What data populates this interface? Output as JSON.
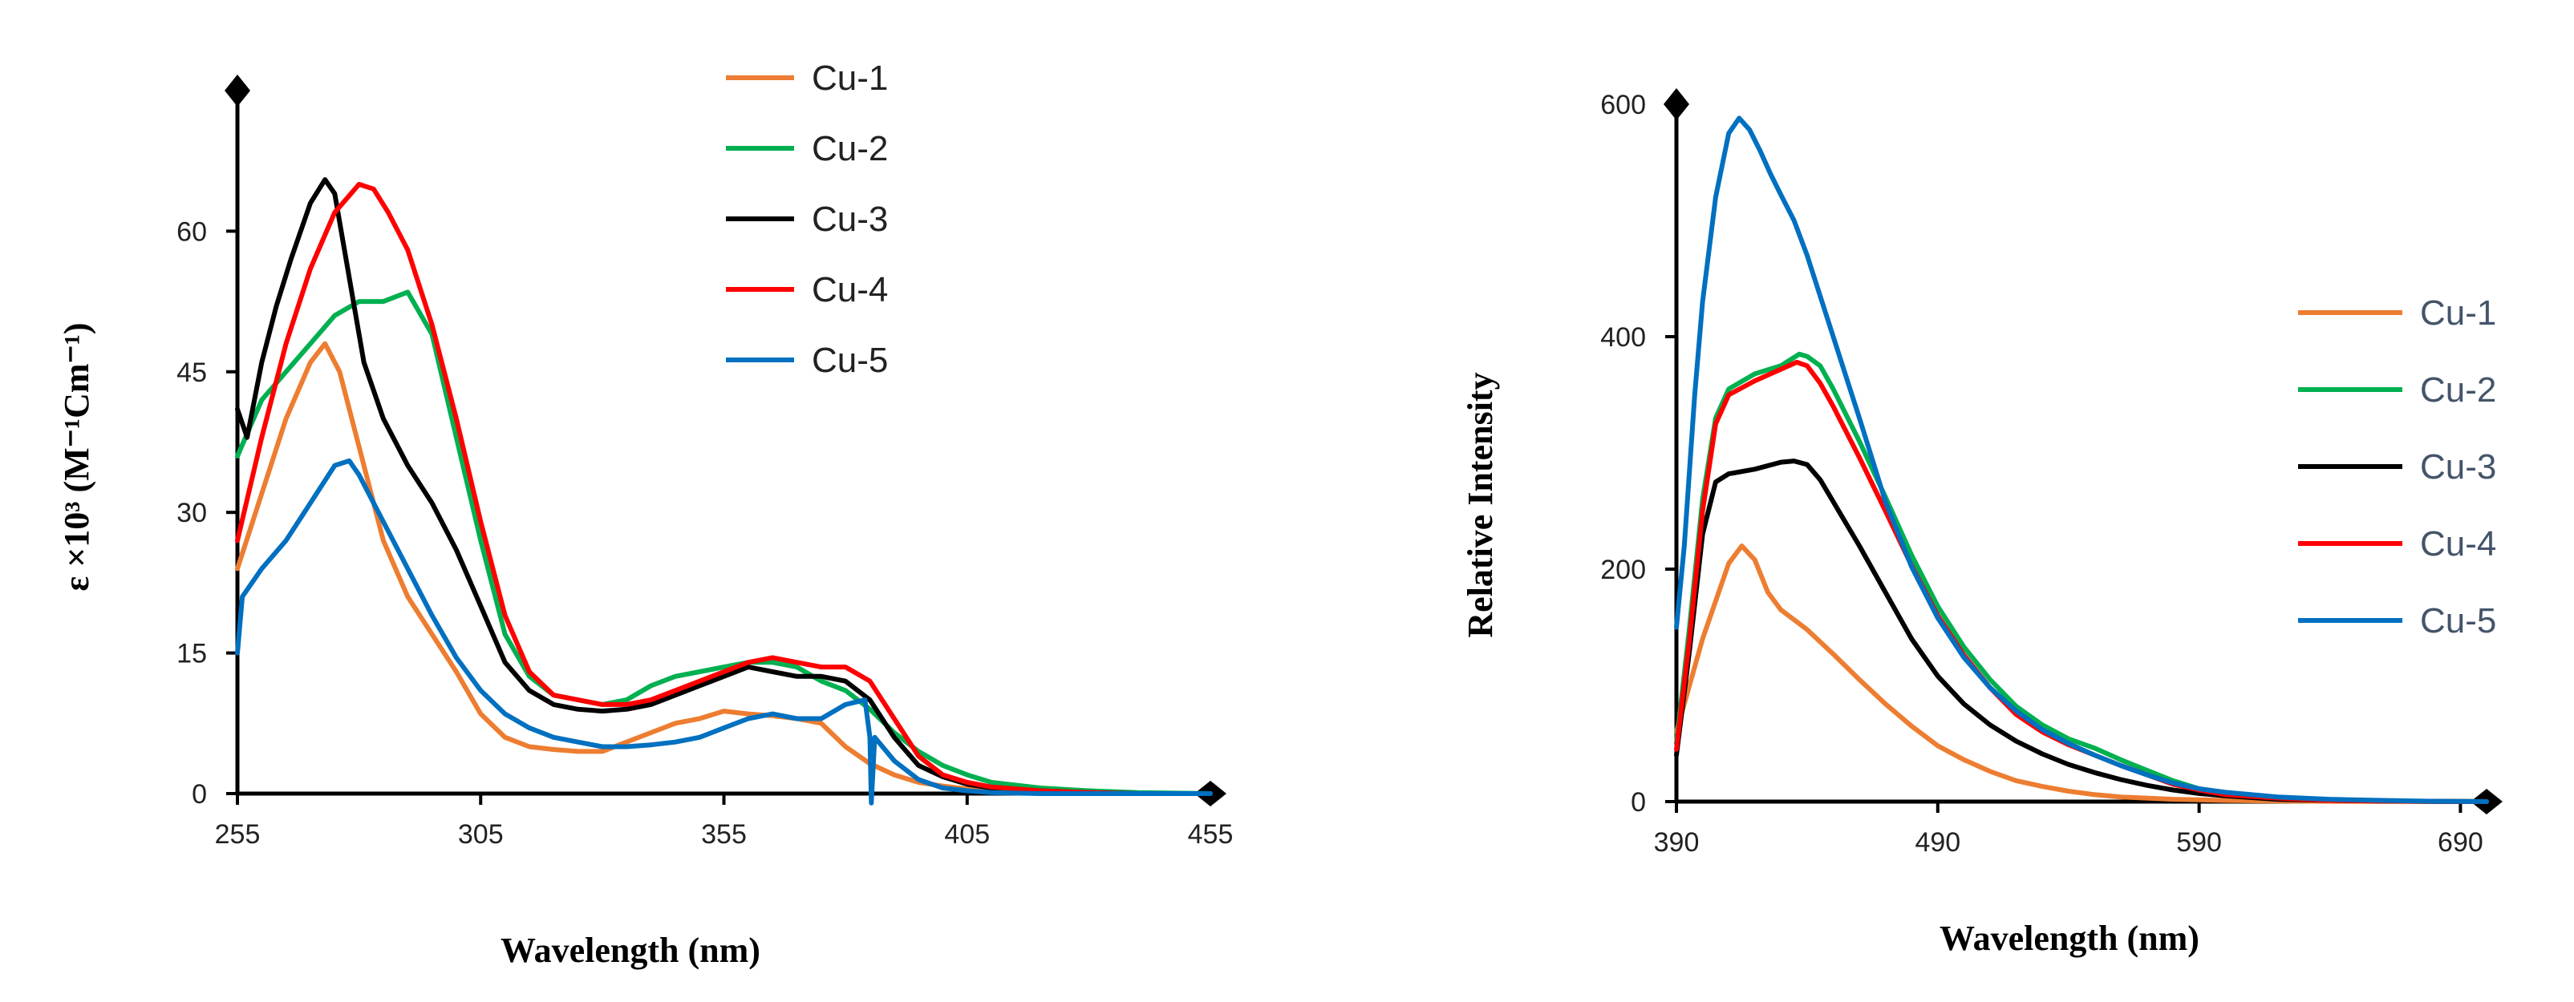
{
  "chart_data": [
    {
      "type": "line",
      "title": "",
      "xlabel": "Wavelength (nm)",
      "ylabel": "ε ×10³ (M⁻¹Cm⁻¹)",
      "xlim": [
        255,
        455
      ],
      "ylim": [
        0,
        75
      ],
      "xticks": [
        "255",
        "305",
        "355",
        "405",
        "455"
      ],
      "yticks": [
        "0",
        "15",
        "30",
        "45",
        "60"
      ],
      "legend_position": "top-right",
      "series": [
        {
          "name": "Cu-1",
          "color": "#ED7D31",
          "x": [
            255,
            260,
            265,
            270,
            273,
            276,
            280,
            285,
            290,
            295,
            300,
            305,
            310,
            315,
            320,
            325,
            330,
            335,
            340,
            345,
            350,
            355,
            360,
            365,
            370,
            375,
            380,
            385,
            390,
            395,
            400,
            405,
            410,
            420,
            430,
            440,
            455
          ],
          "y": [
            24,
            32,
            40,
            46,
            48,
            45,
            37,
            27,
            21,
            17,
            13,
            8.5,
            6,
            5,
            4.7,
            4.5,
            4.5,
            5.5,
            6.5,
            7.5,
            8,
            8.8,
            8.5,
            8.3,
            8,
            7.5,
            5,
            3.2,
            2,
            1.2,
            0.8,
            0.5,
            0.3,
            0.1,
            0.05,
            0,
            0
          ]
        },
        {
          "name": "Cu-2",
          "color": "#00B050",
          "x": [
            255,
            260,
            265,
            270,
            275,
            280,
            285,
            290,
            295,
            300,
            305,
            310,
            315,
            320,
            325,
            330,
            335,
            340,
            345,
            350,
            355,
            360,
            365,
            370,
            375,
            380,
            385,
            390,
            395,
            400,
            405,
            410,
            420,
            430,
            440,
            455
          ],
          "y": [
            36,
            42,
            45,
            48,
            51,
            52.5,
            52.5,
            53.5,
            49,
            38,
            27,
            17,
            12.5,
            10.5,
            10,
            9.5,
            10,
            11.5,
            12.5,
            13,
            13.5,
            14,
            14,
            13.5,
            12,
            11,
            9,
            6.5,
            4.5,
            3,
            2,
            1.2,
            0.6,
            0.3,
            0.1,
            0
          ]
        },
        {
          "name": "Cu-3",
          "color": "#000000",
          "x": [
            255,
            257,
            260,
            263,
            266,
            270,
            273,
            275,
            278,
            281,
            285,
            290,
            295,
            300,
            305,
            310,
            315,
            320,
            325,
            330,
            335,
            340,
            345,
            350,
            355,
            360,
            365,
            370,
            375,
            380,
            385,
            390,
            395,
            400,
            405,
            410,
            420,
            430,
            440,
            455
          ],
          "y": [
            41,
            38,
            46,
            52,
            57,
            63,
            65.5,
            64,
            55,
            46,
            40,
            35,
            31,
            26,
            20,
            14,
            11,
            9.5,
            9,
            8.8,
            9,
            9.5,
            10.5,
            11.5,
            12.5,
            13.5,
            13,
            12.5,
            12.5,
            12,
            10,
            6,
            3,
            1.8,
            1,
            0.6,
            0.3,
            0.1,
            0,
            0
          ]
        },
        {
          "name": "Cu-4",
          "color": "#FF0000",
          "x": [
            255,
            260,
            265,
            270,
            275,
            280,
            283,
            286,
            290,
            295,
            300,
            305,
            310,
            315,
            320,
            325,
            330,
            335,
            340,
            345,
            350,
            355,
            360,
            365,
            370,
            375,
            380,
            385,
            390,
            395,
            400,
            405,
            410,
            420,
            430,
            440,
            455
          ],
          "y": [
            27,
            38,
            48,
            56,
            62,
            65,
            64.5,
            62,
            58,
            50,
            40,
            29,
            19,
            13,
            10.5,
            10,
            9.5,
            9.5,
            10,
            11,
            12,
            13,
            14,
            14.5,
            14,
            13.5,
            13.5,
            12,
            8,
            4,
            2,
            1.2,
            0.7,
            0.3,
            0.1,
            0,
            0
          ]
        },
        {
          "name": "Cu-5",
          "color": "#0070C0",
          "x": [
            255,
            256,
            260,
            265,
            270,
            275,
            278,
            280,
            285,
            290,
            295,
            300,
            305,
            310,
            315,
            320,
            325,
            330,
            335,
            340,
            345,
            350,
            355,
            360,
            365,
            370,
            375,
            380,
            384,
            385,
            385.3,
            386,
            390,
            395,
            400,
            405,
            410,
            420,
            430,
            440,
            455
          ],
          "y": [
            15,
            21,
            24,
            27,
            31,
            35,
            35.5,
            34,
            29,
            24,
            19,
            14.5,
            11,
            8.5,
            7,
            6,
            5.5,
            5,
            5,
            5.2,
            5.5,
            6,
            7,
            8,
            8.5,
            8,
            8,
            9.5,
            10,
            6,
            -1,
            6,
            3.5,
            1.5,
            0.6,
            0.3,
            0.1,
            0,
            0,
            0,
            0
          ]
        }
      ]
    },
    {
      "type": "line",
      "title": "",
      "xlabel": "Wavelength (nm)",
      "ylabel": "Relative Intensity",
      "xlim": [
        390,
        700
      ],
      "ylim": [
        0,
        600
      ],
      "xticks": [
        "390",
        "490",
        "590",
        "690"
      ],
      "yticks": [
        "0",
        "200",
        "400",
        "600"
      ],
      "legend_position": "right",
      "series": [
        {
          "name": "Cu-1",
          "color": "#ED7D31",
          "x": [
            390,
            400,
            410,
            415,
            420,
            425,
            430,
            440,
            450,
            460,
            470,
            480,
            490,
            500,
            510,
            520,
            530,
            540,
            550,
            560,
            570,
            580,
            590,
            600,
            620,
            640,
            660,
            680,
            700
          ],
          "y": [
            60,
            140,
            205,
            220,
            208,
            180,
            165,
            148,
            127,
            105,
            84,
            65,
            48,
            36,
            26,
            18,
            13,
            9,
            6,
            4,
            3,
            2,
            1.5,
            1,
            0.5,
            0.3,
            0.2,
            0.1,
            0
          ]
        },
        {
          "name": "Cu-2",
          "color": "#00B050",
          "x": [
            390,
            395,
            400,
            405,
            410,
            420,
            430,
            437,
            440,
            445,
            450,
            460,
            470,
            480,
            490,
            500,
            510,
            520,
            530,
            540,
            550,
            560,
            570,
            580,
            590,
            600,
            620,
            640,
            660,
            680,
            700
          ],
          "y": [
            50,
            150,
            260,
            330,
            355,
            368,
            375,
            385,
            383,
            375,
            355,
            310,
            262,
            212,
            168,
            133,
            105,
            82,
            66,
            54,
            46,
            36,
            27,
            18,
            11,
            7,
            3,
            1,
            0.5,
            0.2,
            0
          ]
        },
        {
          "name": "Cu-3",
          "color": "#000000",
          "x": [
            390,
            395,
            400,
            405,
            410,
            420,
            430,
            435,
            440,
            445,
            450,
            460,
            470,
            480,
            490,
            500,
            510,
            520,
            530,
            540,
            550,
            560,
            570,
            580,
            590,
            600,
            620,
            640,
            660,
            680,
            700
          ],
          "y": [
            40,
            130,
            230,
            275,
            282,
            286,
            292,
            293,
            290,
            277,
            258,
            220,
            180,
            140,
            108,
            84,
            66,
            52,
            41,
            32,
            25,
            19,
            14,
            10,
            7,
            5,
            2,
            1,
            0.5,
            0.2,
            0
          ]
        },
        {
          "name": "Cu-4",
          "color": "#FF0000",
          "x": [
            390,
            395,
            400,
            405,
            410,
            420,
            430,
            436,
            440,
            445,
            450,
            460,
            470,
            480,
            490,
            500,
            510,
            520,
            530,
            540,
            550,
            560,
            570,
            580,
            590,
            600,
            620,
            640,
            660,
            680,
            700
          ],
          "y": [
            45,
            140,
            250,
            325,
            350,
            362,
            372,
            378,
            375,
            360,
            340,
            296,
            250,
            203,
            160,
            126,
            98,
            75,
            60,
            49,
            40,
            31,
            23,
            15,
            10,
            6,
            3,
            1,
            0.5,
            0.2,
            0
          ]
        },
        {
          "name": "Cu-5",
          "color": "#0070C0",
          "x": [
            390,
            393,
            397,
            400,
            405,
            410,
            414,
            418,
            422,
            426,
            430,
            435,
            440,
            450,
            460,
            470,
            480,
            490,
            500,
            510,
            520,
            530,
            540,
            550,
            560,
            570,
            580,
            590,
            600,
            620,
            640,
            660,
            680,
            700
          ],
          "y": [
            150,
            220,
            350,
            430,
            520,
            575,
            588,
            578,
            560,
            540,
            522,
            500,
            470,
            400,
            330,
            258,
            202,
            158,
            124,
            98,
            78,
            62,
            50,
            40,
            31,
            23,
            16,
            11,
            8,
            4,
            2,
            1,
            0.3,
            0
          ]
        }
      ]
    }
  ]
}
